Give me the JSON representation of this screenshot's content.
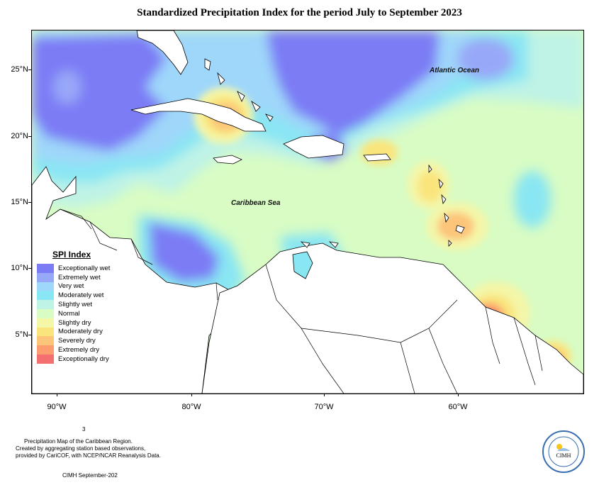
{
  "title": "Standardized Precipitation Index for the period July to September 2023",
  "axes": {
    "y_ticks": [
      "25°N",
      "20°N",
      "15°N",
      "10°N",
      "5°N"
    ],
    "x_ticks": [
      "90°W",
      "80°W",
      "70°W",
      "60°W"
    ]
  },
  "labels": {
    "atlantic": "Atlantic Ocean",
    "caribbean": "Caribbean Sea"
  },
  "legend": {
    "title": "SPI Index",
    "items": [
      {
        "label": "Exceptionally wet",
        "color": "#7b7bf5"
      },
      {
        "label": "Extremely wet",
        "color": "#98a8f8"
      },
      {
        "label": "Very wet",
        "color": "#9fd7fa"
      },
      {
        "label": "Moderately wet",
        "color": "#89e6f3"
      },
      {
        "label": "Slightly wet",
        "color": "#bff3e6"
      },
      {
        "label": "Normal",
        "color": "#d8fcc4"
      },
      {
        "label": "Slightly dry",
        "color": "#f4f6a8"
      },
      {
        "label": "Moderately dry",
        "color": "#fae57d"
      },
      {
        "label": "Severely dry",
        "color": "#fcc57a"
      },
      {
        "label": "Extremely dry",
        "color": "#fb9d6e"
      },
      {
        "label": "Exceptionally dry",
        "color": "#f47070"
      }
    ]
  },
  "footer": {
    "superscript": "3",
    "line1": "Precipitation Map of the Caribbean Region.",
    "line2": "Created by aggregating station based observations,",
    "line3": "provided by CariCOF, with NCEP/NCAR Reanalysis Data.",
    "credit": "CIMH September-202",
    "logo_text": "CIMH"
  },
  "colors": {
    "land": "#ffffff",
    "coast": "#000000",
    "normal": "#d8fcc4"
  }
}
